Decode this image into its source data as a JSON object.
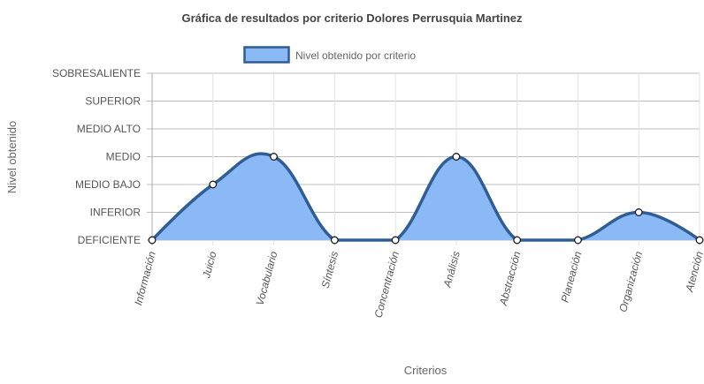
{
  "chart_data": {
    "type": "area",
    "title": "Gráfica de resultados por criterio Dolores Perrusquia Martinez",
    "xlabel": "Criterios",
    "ylabel": "Nivel obtenido",
    "legend_position": "top",
    "grid": true,
    "smooth": true,
    "categories": [
      "Información",
      "Juicio",
      "Vocabulario",
      "Síntesis",
      "Concentración",
      "Análisis",
      "Abstracción",
      "Planeación",
      "Organización",
      "Atención"
    ],
    "y_levels": [
      "DEFICIENTE",
      "INFERIOR",
      "MEDIO BAJO",
      "MEDIO",
      "MEDIO ALTO",
      "SUPERIOR",
      "SOBRESALIENTE"
    ],
    "ylim": [
      0,
      6
    ],
    "series": [
      {
        "name": "Nivel obtenido por criterio",
        "values": [
          0,
          2,
          3,
          0,
          0,
          3,
          0,
          0,
          1,
          0
        ],
        "fill_color": "#8ab9f5",
        "line_color": "#2f5d94"
      }
    ]
  }
}
